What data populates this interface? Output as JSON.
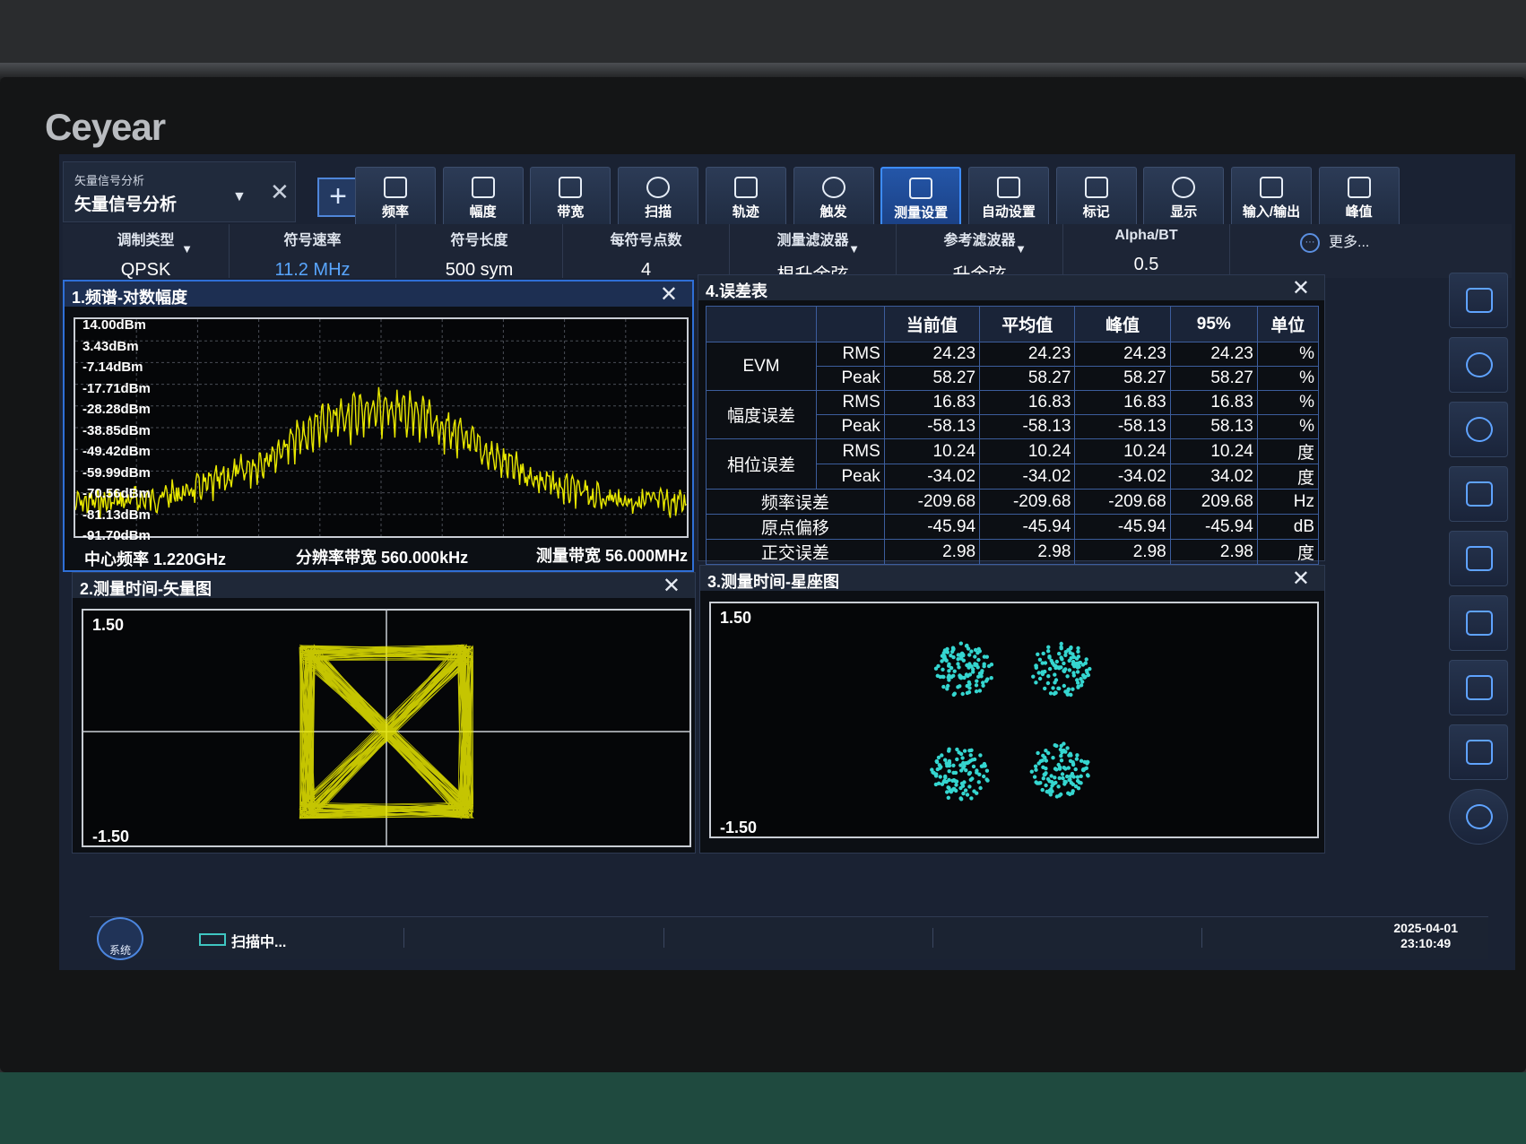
{
  "brand": "Ceyear",
  "mode": {
    "small": "矢量信号分析",
    "main": "矢量信号分析"
  },
  "toolbar": [
    {
      "label": "频率",
      "icon": "frequency-icon"
    },
    {
      "label": "幅度",
      "icon": "amplitude-icon"
    },
    {
      "label": "带宽",
      "icon": "bandwidth-icon"
    },
    {
      "label": "扫描",
      "icon": "sweep-icon"
    },
    {
      "label": "轨迹",
      "icon": "trace-icon"
    },
    {
      "label": "触发",
      "icon": "trigger-icon"
    },
    {
      "label": "测量设置",
      "icon": "meas-setup-icon",
      "active": true
    },
    {
      "label": "自动设置",
      "icon": "auto-setup-icon"
    },
    {
      "label": "标记",
      "icon": "marker-icon"
    },
    {
      "label": "显示",
      "icon": "display-icon"
    },
    {
      "label": "输入/输出",
      "icon": "io-icon"
    },
    {
      "label": "峰值",
      "icon": "peak-icon"
    }
  ],
  "params": [
    {
      "label": "调制类型",
      "value": "QPSK"
    },
    {
      "label": "符号速率",
      "value": "11.2 MHz"
    },
    {
      "label": "符号长度",
      "value": "500 sym"
    },
    {
      "label": "每符号点数",
      "value": "4"
    },
    {
      "label": "测量滤波器",
      "value": "根升余弦"
    },
    {
      "label": "参考滤波器",
      "value": "升余弦"
    },
    {
      "label": "Alpha/BT",
      "value": "0.5"
    }
  ],
  "more_label": "更多...",
  "spectrum": {
    "title": "1.频谱-对数幅度",
    "y_ticks": [
      "14.00dBm",
      "3.43dBm",
      "-7.14dBm",
      "-17.71dBm",
      "-28.28dBm",
      "-38.85dBm",
      "-49.42dBm",
      "-59.99dBm",
      "-70.56dBm",
      "-81.13dBm",
      "-91.70dBm"
    ],
    "center": "中心频率 1.220GHz",
    "rbw": "分辨率带宽 560.000kHz",
    "span": "测量带宽 56.000MHz"
  },
  "error_table": {
    "title": "4.误差表",
    "headers": [
      "",
      "",
      "当前值",
      "平均值",
      "峰值",
      "95%",
      "单位"
    ],
    "groups": [
      {
        "name": "EVM",
        "rows": [
          {
            "sub": "RMS",
            "v": [
              "24.23",
              "24.23",
              "24.23",
              "24.23"
            ],
            "unit": "%"
          },
          {
            "sub": "Peak",
            "v": [
              "58.27",
              "58.27",
              "58.27",
              "58.27"
            ],
            "unit": "%"
          }
        ]
      },
      {
        "name": "幅度误差",
        "rows": [
          {
            "sub": "RMS",
            "v": [
              "16.83",
              "16.83",
              "16.83",
              "16.83"
            ],
            "unit": "%"
          },
          {
            "sub": "Peak",
            "v": [
              "-58.13",
              "-58.13",
              "-58.13",
              "58.13"
            ],
            "unit": "%"
          }
        ]
      },
      {
        "name": "相位误差",
        "rows": [
          {
            "sub": "RMS",
            "v": [
              "10.24",
              "10.24",
              "10.24",
              "10.24"
            ],
            "unit": "度"
          },
          {
            "sub": "Peak",
            "v": [
              "-34.02",
              "-34.02",
              "-34.02",
              "34.02"
            ],
            "unit": "度"
          }
        ]
      }
    ],
    "singles": [
      {
        "name": "频率误差",
        "v": [
          "-209.68",
          "-209.68",
          "-209.68",
          "209.68"
        ],
        "unit": "Hz"
      },
      {
        "name": "原点偏移",
        "v": [
          "-45.94",
          "-45.94",
          "-45.94",
          "-45.94"
        ],
        "unit": "dB"
      },
      {
        "name": "正交误差",
        "v": [
          "2.98",
          "2.98",
          "2.98",
          "2.98"
        ],
        "unit": "度"
      }
    ]
  },
  "vector": {
    "title": "2.测量时间-矢量图",
    "ymax": "1.50",
    "ymin": "-1.50"
  },
  "constellation": {
    "title": "3.测量时间-星座图",
    "ymax": "1.50",
    "ymin": "-1.50"
  },
  "status": {
    "system": "系统",
    "scan": "扫描中...",
    "date": "2025-04-01",
    "time": "23:10:49"
  },
  "colors": {
    "trace": "#e8e800",
    "constellation": "#35d6d0",
    "accent": "#2f6fd6"
  }
}
